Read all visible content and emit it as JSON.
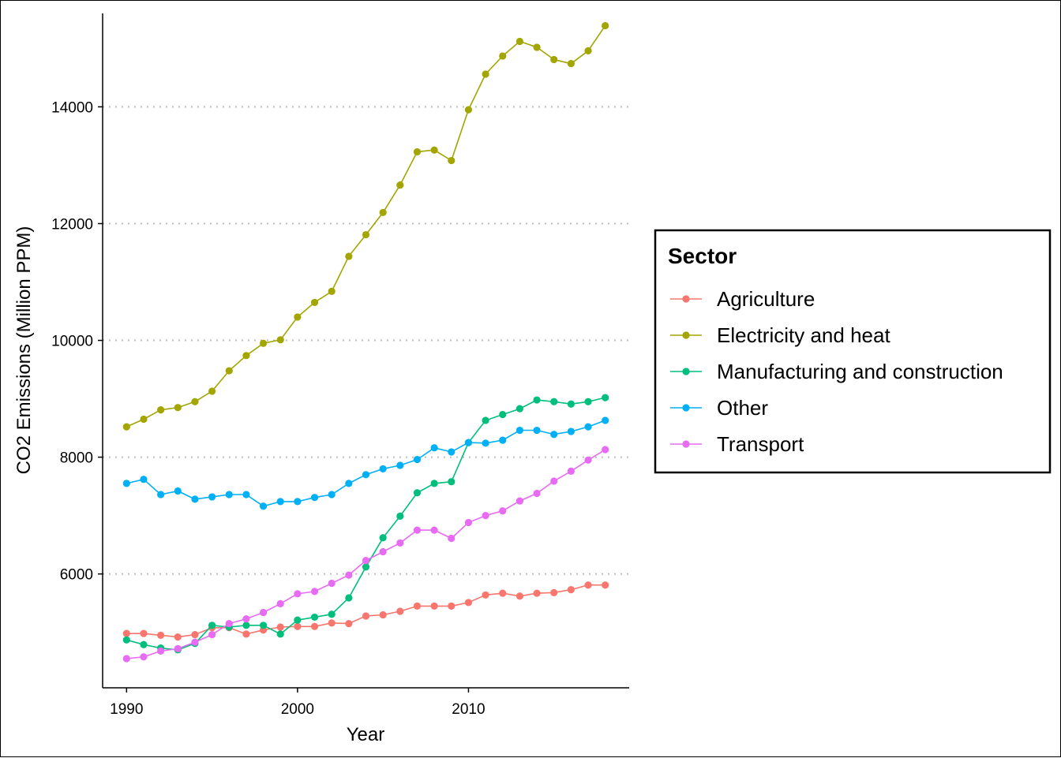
{
  "chart_data": {
    "type": "line",
    "xlabel": "Year",
    "ylabel": "CO2 Emissions (Million PPM)",
    "xlim": [
      1988.6,
      2019.4
    ],
    "ylim": [
      4050,
      15600
    ],
    "x_ticks": [
      1990,
      2000,
      2010
    ],
    "y_ticks": [
      6000,
      8000,
      10000,
      12000,
      14000
    ],
    "grid": "horizontal dotted at y ticks",
    "legend": {
      "title": "Sector",
      "position": "right"
    },
    "x": [
      1990,
      1991,
      1992,
      1993,
      1994,
      1995,
      1996,
      1997,
      1998,
      1999,
      2000,
      2001,
      2002,
      2003,
      2004,
      2005,
      2006,
      2007,
      2008,
      2009,
      2010,
      2011,
      2012,
      2013,
      2014,
      2015,
      2016,
      2017,
      2018
    ],
    "series": [
      {
        "name": "Agriculture",
        "color": "#F8766D",
        "values": [
          4980,
          4980,
          4950,
          4920,
          4960,
          5080,
          5080,
          4970,
          5040,
          5090,
          5100,
          5100,
          5160,
          5150,
          5280,
          5300,
          5360,
          5450,
          5450,
          5450,
          5510,
          5640,
          5670,
          5620,
          5670,
          5680,
          5730,
          5810,
          5810
        ]
      },
      {
        "name": "Electricity and heat",
        "color": "#A3A500",
        "values": [
          8520,
          8650,
          8810,
          8850,
          8950,
          9130,
          9480,
          9740,
          9950,
          10010,
          10400,
          10650,
          10840,
          11440,
          11810,
          12190,
          12660,
          13230,
          13260,
          13080,
          13950,
          14560,
          14870,
          15120,
          15020,
          14810,
          14740,
          14960,
          15390
        ]
      },
      {
        "name": "Manufacturing and construction",
        "color": "#00BF7D",
        "values": [
          4870,
          4790,
          4730,
          4700,
          4810,
          5120,
          5090,
          5120,
          5120,
          4970,
          5210,
          5260,
          5310,
          5590,
          6120,
          6620,
          6990,
          7390,
          7550,
          7580,
          8250,
          8630,
          8730,
          8830,
          8980,
          8950,
          8910,
          8950,
          9020
        ]
      },
      {
        "name": "Other",
        "color": "#00B0F6",
        "values": [
          7550,
          7620,
          7360,
          7420,
          7280,
          7320,
          7360,
          7360,
          7160,
          7240,
          7240,
          7310,
          7360,
          7550,
          7700,
          7800,
          7860,
          7960,
          8160,
          8090,
          8250,
          8240,
          8290,
          8460,
          8460,
          8390,
          8440,
          8520,
          8630
        ]
      },
      {
        "name": "Transport",
        "color": "#E76BF3",
        "values": [
          4550,
          4580,
          4680,
          4720,
          4830,
          4960,
          5150,
          5230,
          5340,
          5490,
          5660,
          5700,
          5840,
          5980,
          6230,
          6380,
          6530,
          6750,
          6750,
          6610,
          6880,
          7000,
          7080,
          7250,
          7380,
          7590,
          7760,
          7950,
          8130
        ]
      }
    ]
  }
}
